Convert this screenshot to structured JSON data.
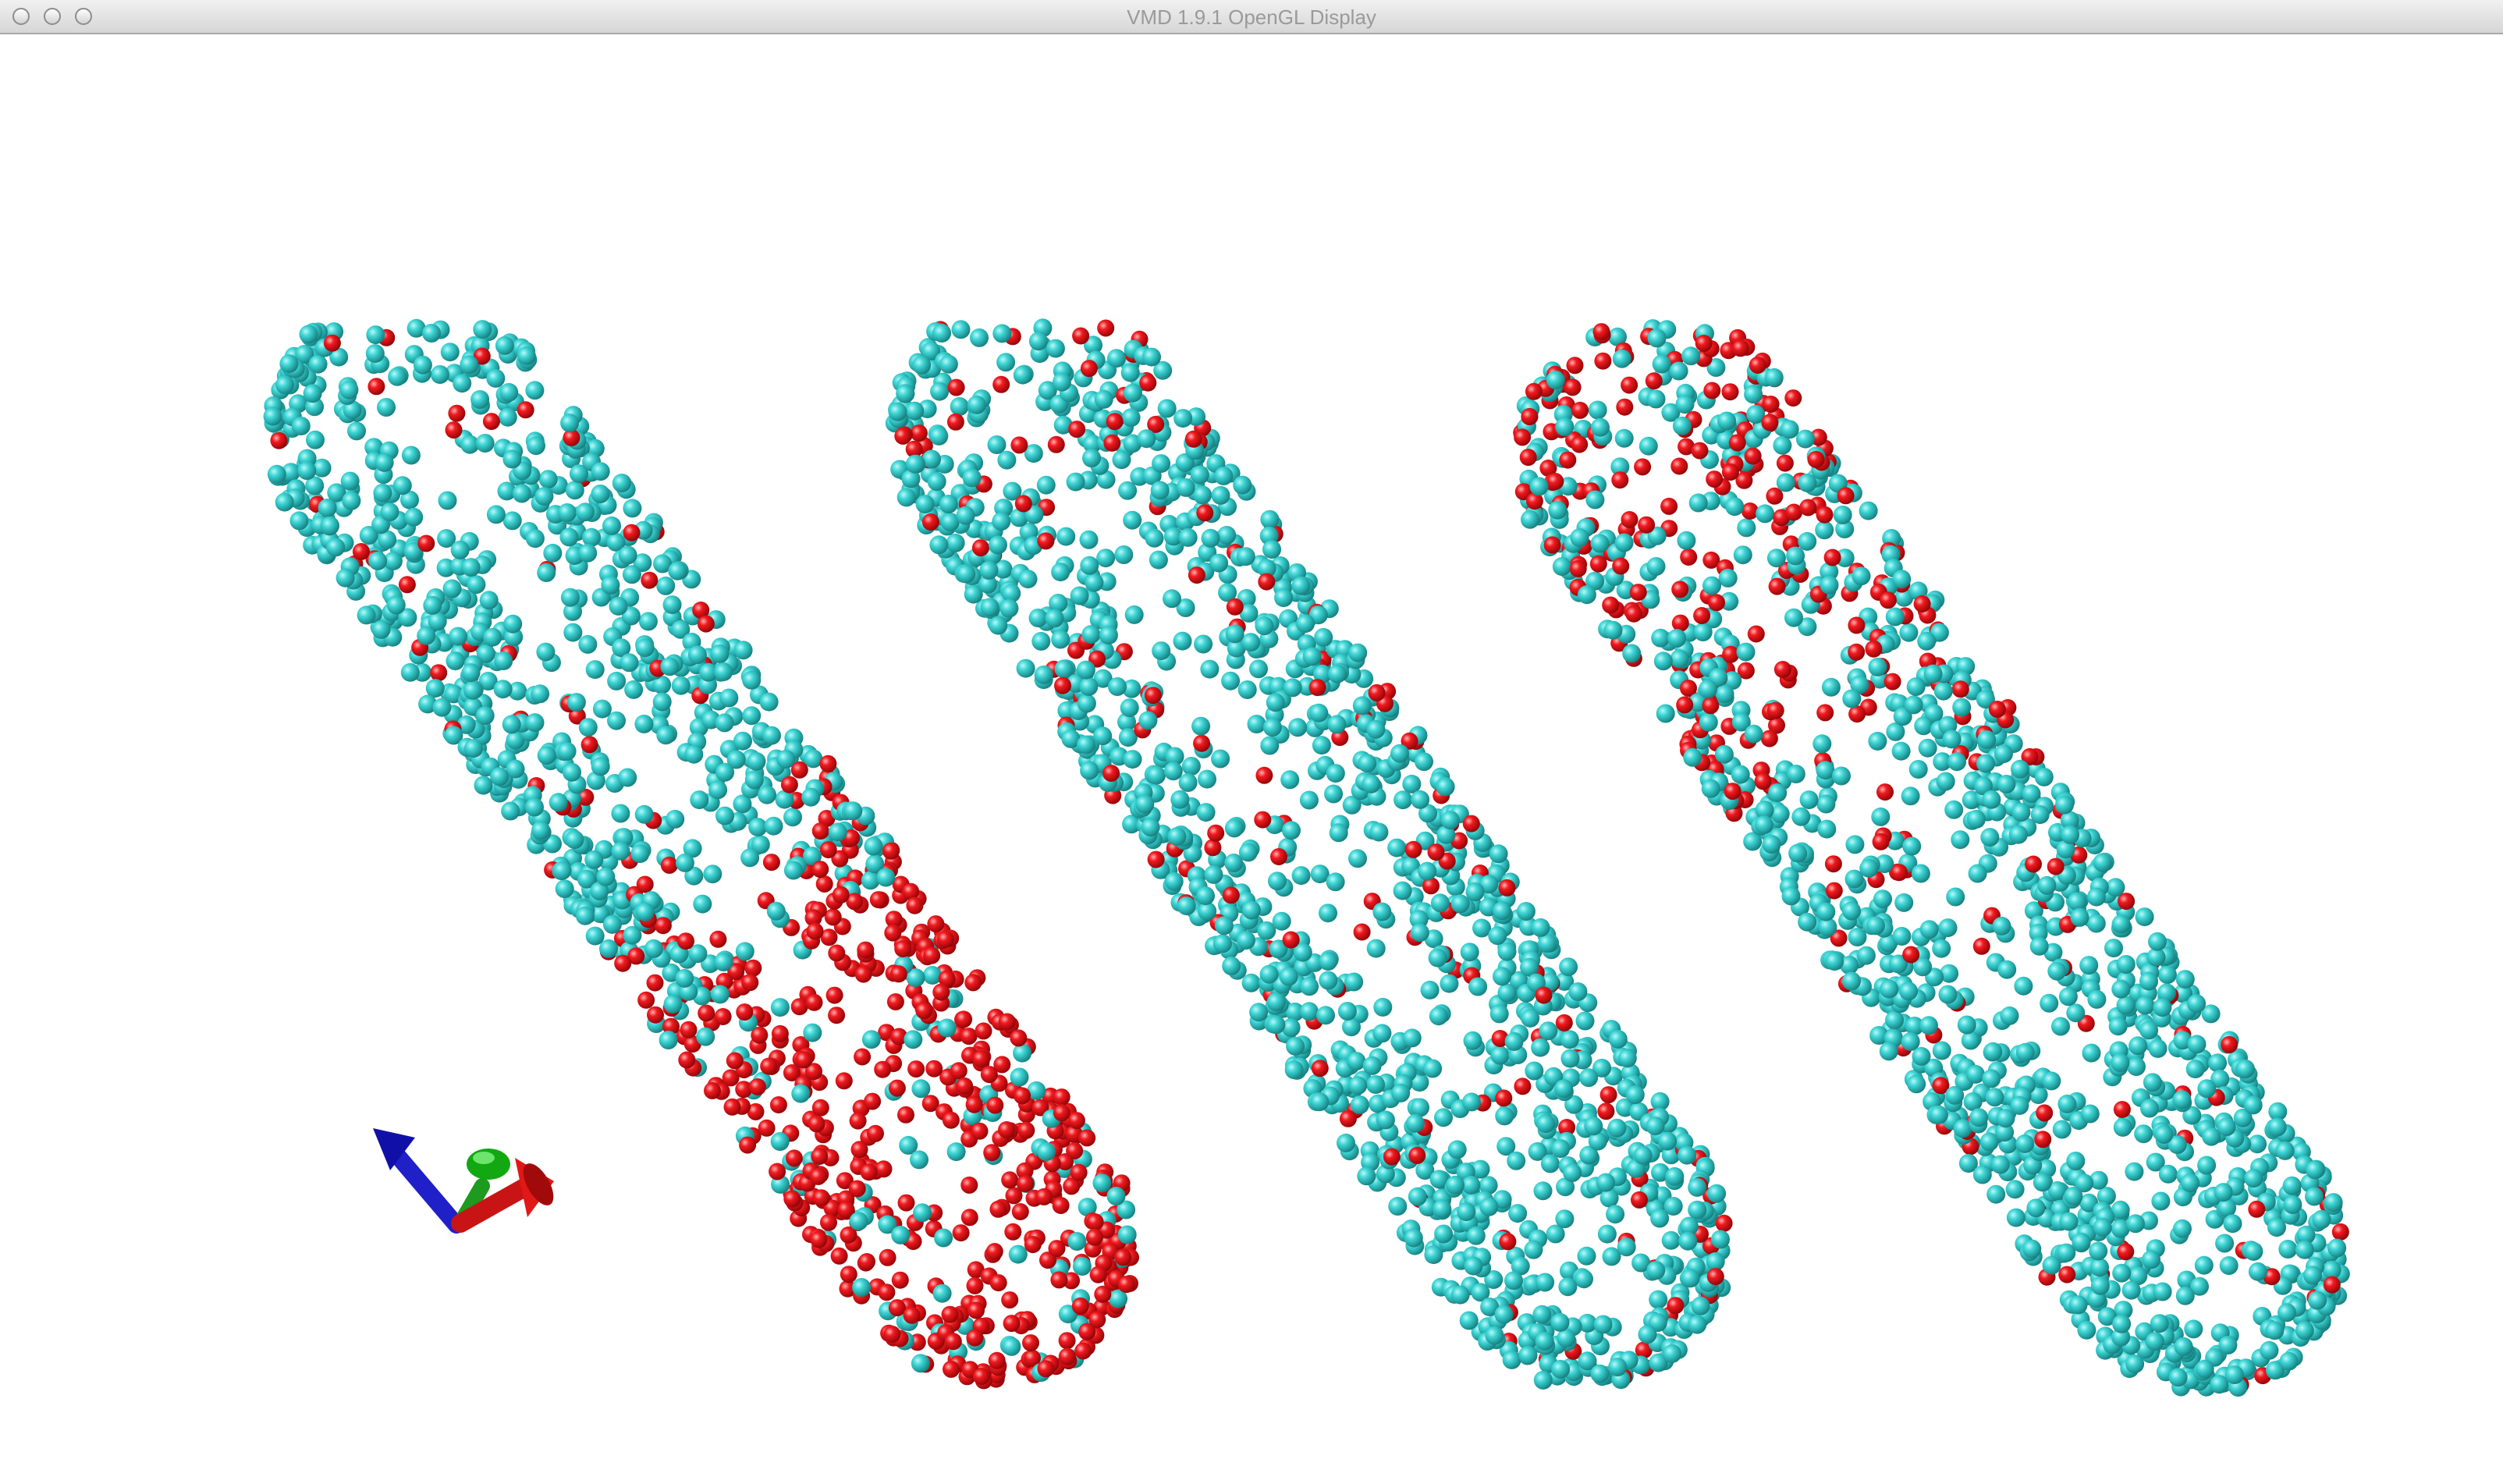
{
  "window": {
    "title": "VMD 1.9.1 OpenGL Display"
  },
  "scene": {
    "background_color": "#ffffff",
    "particle_colors": {
      "cyan": "#2bc6c6",
      "red": "#e8151b"
    },
    "tube_count": 3,
    "axes_colors": {
      "x": "#d21414",
      "y": "#14a014",
      "z": "#1f1fd0"
    }
  }
}
